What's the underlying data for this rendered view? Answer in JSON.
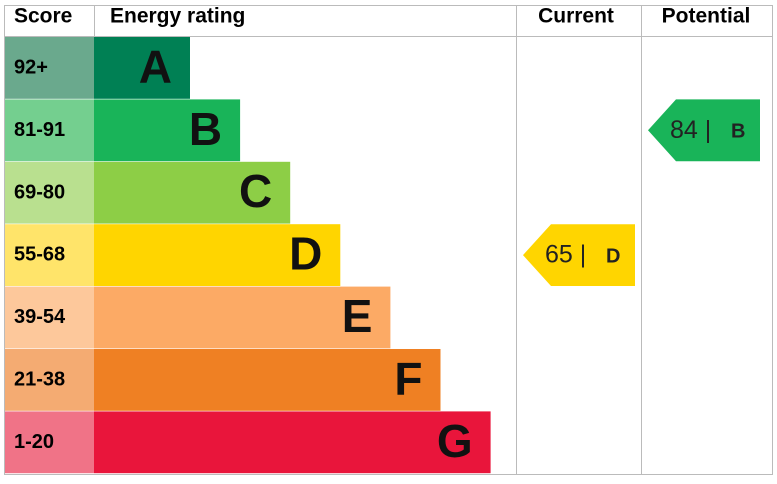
{
  "chart_data": {
    "type": "epc",
    "headers": [
      "Score",
      "Energy rating",
      "Current",
      "Potential"
    ],
    "bands": [
      {
        "score": "92+",
        "letter": "A",
        "color": "#008054",
        "light": "#6aa98d"
      },
      {
        "score": "81-91",
        "letter": "B",
        "color": "#19b459",
        "light": "#74cf8f"
      },
      {
        "score": "69-80",
        "letter": "C",
        "color": "#8dce46",
        "light": "#b9e08f"
      },
      {
        "score": "55-68",
        "letter": "D",
        "color": "#ffd500",
        "light": "#ffe46a"
      },
      {
        "score": "39-54",
        "letter": "E",
        "color": "#fcaa65",
        "light": "#fdc89b"
      },
      {
        "score": "21-38",
        "letter": "F",
        "color": "#ef8023",
        "light": "#f4ab72"
      },
      {
        "score": "1-20",
        "letter": "G",
        "color": "#e9153b",
        "light": "#f07387"
      }
    ],
    "current": {
      "label": "65 |",
      "letter": "D"
    },
    "potential": {
      "label": "84 |",
      "letter": "B"
    }
  }
}
